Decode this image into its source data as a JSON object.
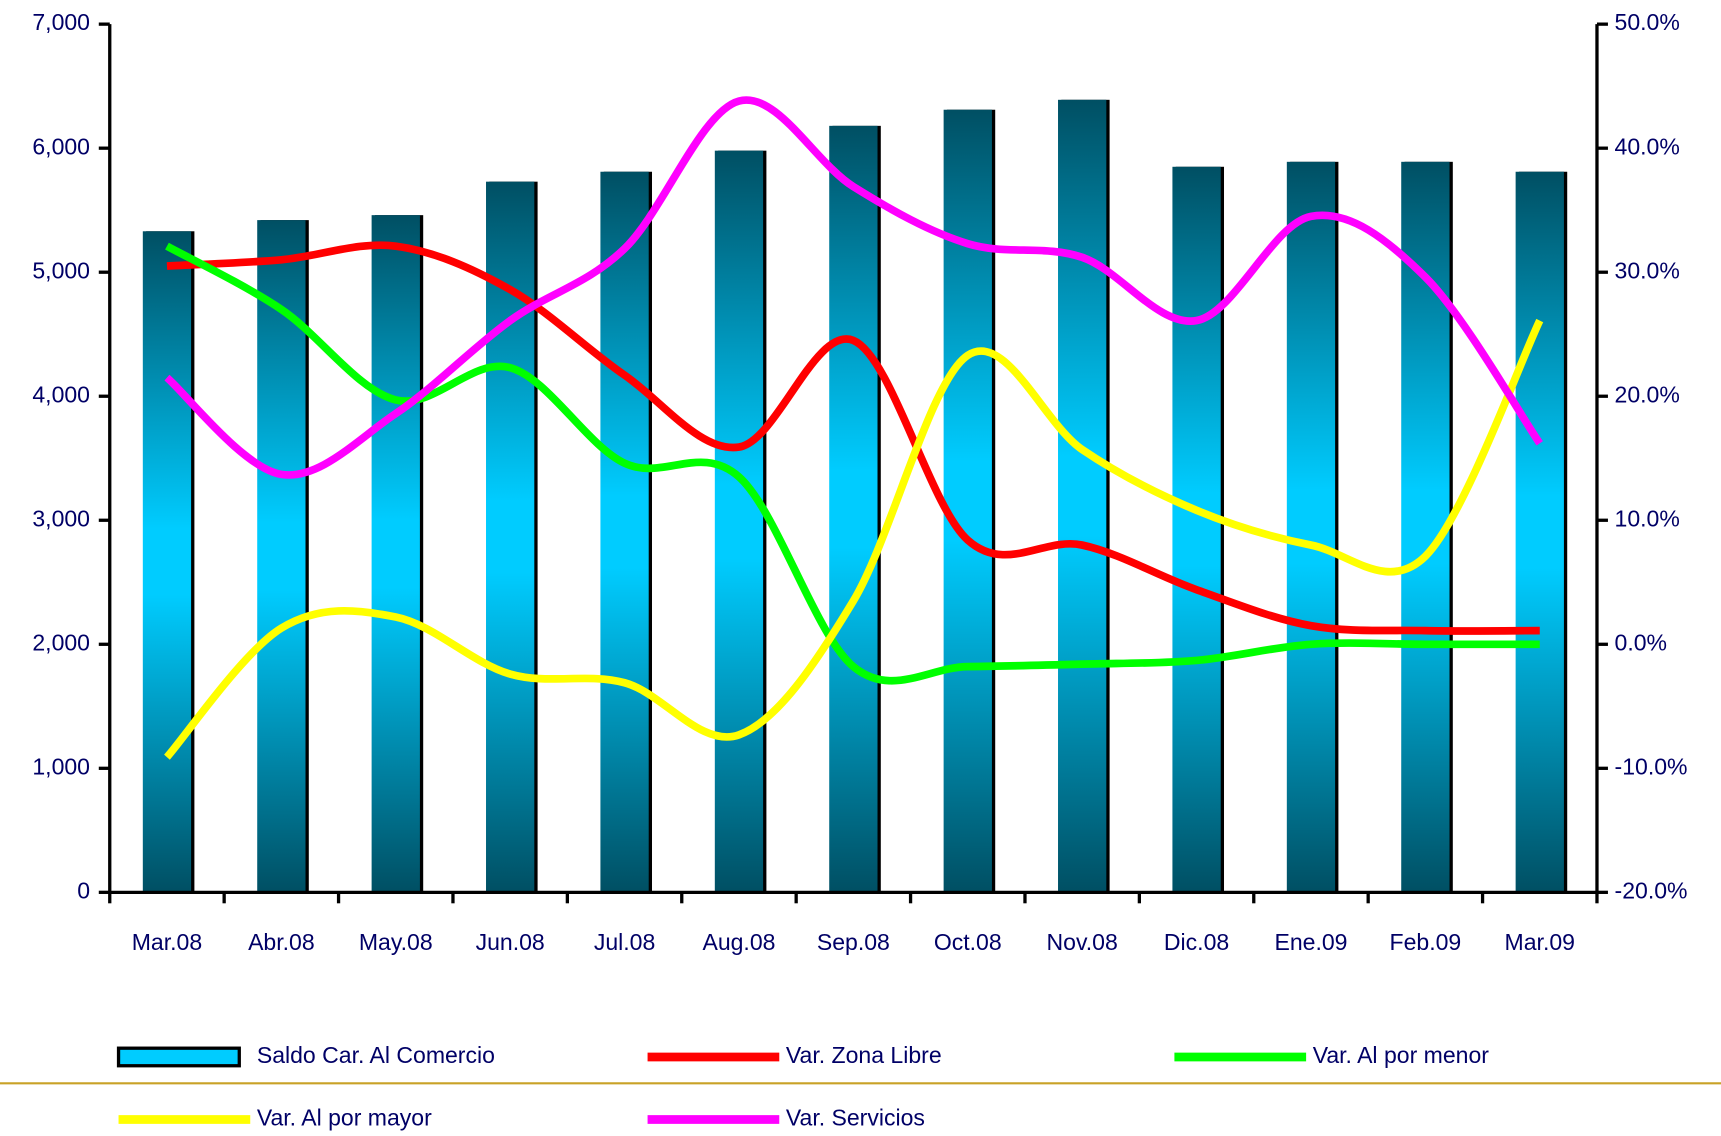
{
  "chart_data": {
    "type": "bar-line",
    "categories": [
      "Mar.08",
      "Abr.08",
      "May.08",
      "Jun.08",
      "Jul.08",
      "Aug.08",
      "Sep.08",
      "Oct.08",
      "Nov.08",
      "Dic.08",
      "Ene.09",
      "Feb.09",
      "Mar.09"
    ],
    "series": [
      {
        "name": "Saldo Car. Al Comercio",
        "type": "bar",
        "color": "#00ccff",
        "values": [
          5330,
          5420,
          5460,
          5730,
          5810,
          5980,
          6180,
          6310,
          6390,
          5850,
          5890,
          5890,
          5810
        ]
      },
      {
        "name": "Var. Zona Libre",
        "type": "line",
        "axis": "y2",
        "color": "#ff0000",
        "values": [
          30.5,
          31.0,
          32.1,
          28.6,
          21.7,
          15.9,
          24.5,
          8.4,
          8.0,
          4.4,
          1.5,
          1.1,
          1.1
        ]
      },
      {
        "name": "Var. Al por menor",
        "type": "line",
        "axis": "y2",
        "color": "#00ff00",
        "values": [
          32.1,
          27.0,
          19.7,
          22.3,
          14.6,
          13.5,
          -1.8,
          -1.8,
          -1.6,
          -1.3,
          0,
          0,
          0
        ]
      },
      {
        "name": "Var. Al por mayor",
        "type": "line",
        "axis": "y2",
        "color": "#ffff00",
        "values": [
          -9.1,
          1.3,
          2.2,
          -2.4,
          -3.1,
          -7.3,
          3.5,
          23.3,
          15.7,
          10.8,
          8.0,
          7.1,
          26.1
        ]
      },
      {
        "name": "Var. Servicios",
        "type": "line",
        "axis": "y2",
        "color": "#ff00ff",
        "values": [
          21.5,
          13.7,
          18.6,
          26.1,
          31.9,
          43.8,
          36.9,
          32.3,
          31.2,
          26.1,
          34.5,
          29.6,
          16.2
        ]
      }
    ],
    "ylim": [
      0,
      7000
    ],
    "yticks": [
      0,
      {
        "value": 1000,
        "label": "1,000"
      },
      {
        "value": 2000,
        "label": "2,000"
      },
      {
        "value": 3000,
        "label": "3,000"
      },
      {
        "value": 4000,
        "label": "4,000"
      },
      {
        "value": 5000,
        "label": "5,000"
      },
      {
        "value": 6000,
        "label": "6,000"
      },
      {
        "value": 7000,
        "label": "7,000"
      }
    ],
    "y2lim": [
      -20,
      50
    ],
    "y2ticks": [
      {
        "value": -20,
        "label": "-20.0%"
      },
      {
        "value": -10,
        "label": "-10.0%"
      },
      {
        "value": 0,
        "label": "0.0%"
      },
      {
        "value": 10,
        "label": "10.0%"
      },
      {
        "value": 20,
        "label": "20.0%"
      },
      {
        "value": 30,
        "label": "30.0%"
      },
      {
        "value": 40,
        "label": "40.0%"
      },
      {
        "value": 50,
        "label": "50.0%"
      }
    ]
  }
}
